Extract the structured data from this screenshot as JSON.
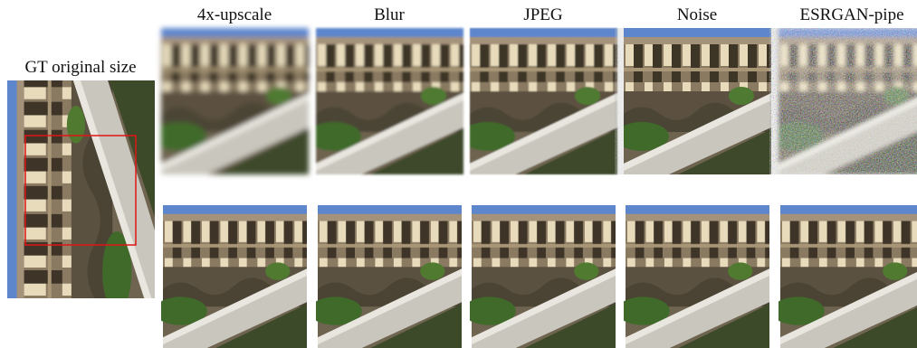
{
  "figure": {
    "gt_label": "GT original size",
    "columns": [
      "4x-upscale",
      "Blur",
      "JPEG",
      "Noise",
      "ESRGAN-pipe"
    ]
  }
}
